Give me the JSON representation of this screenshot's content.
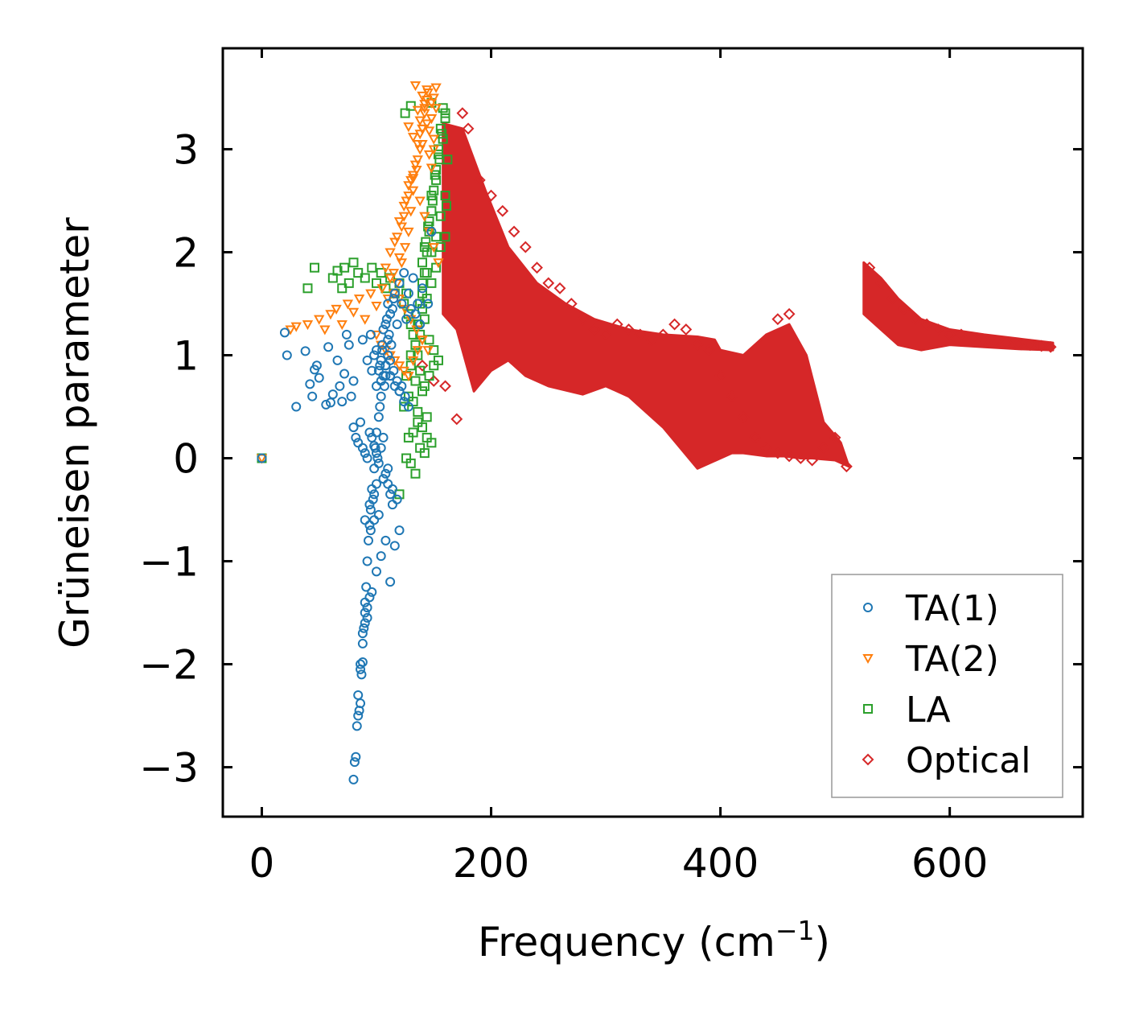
{
  "chart_data": {
    "type": "scatter",
    "title": "",
    "xlabel": "Frequency (cm",
    "xlabel_sup": "−1",
    "xlabel_suffix": ")",
    "ylabel": "Grüneisen parameter",
    "xlim": [
      -34,
      716
    ],
    "ylim": [
      -3.48,
      3.98
    ],
    "xticks": [
      0,
      200,
      400,
      600
    ],
    "xtick_labels": [
      "0",
      "200",
      "400",
      "600"
    ],
    "yticks": [
      -3,
      -2,
      -1,
      0,
      1,
      2,
      3
    ],
    "ytick_labels": [
      "−3",
      "−2",
      "−1",
      "0",
      "1",
      "2",
      "3"
    ],
    "legend_position": "lower-right",
    "series": [
      {
        "name": "TA(1)",
        "marker": "circle",
        "color": "#1f77b4",
        "x": [
          0,
          20,
          22,
          30,
          38,
          42,
          44,
          46,
          48,
          50,
          56,
          58,
          60,
          62,
          66,
          68,
          70,
          72,
          74,
          76,
          78,
          80,
          80,
          81,
          82,
          83,
          84,
          85,
          86,
          86,
          87,
          88,
          88,
          89,
          90,
          90,
          91,
          92,
          92,
          93,
          94,
          95,
          95,
          96,
          97,
          98,
          98,
          99,
          100,
          100,
          101,
          102,
          102,
          103,
          104,
          104,
          105,
          106,
          106,
          107,
          108,
          108,
          109,
          110,
          110,
          111,
          112,
          113,
          114,
          115,
          116,
          118,
          120,
          122,
          124,
          126,
          128,
          130,
          132,
          134,
          136,
          138,
          140,
          145,
          148,
          95,
          98,
          100,
          103,
          105,
          108,
          110,
          112,
          115,
          118,
          120,
          122,
          125,
          88,
          92,
          96,
          100,
          104,
          108,
          112,
          116,
          120,
          124,
          128,
          90,
          94,
          98,
          102,
          106,
          110,
          114,
          118,
          100,
          104,
          108,
          112,
          116,
          120,
          84,
          86,
          88,
          90,
          92,
          94,
          96,
          80,
          82,
          84,
          86,
          88,
          90,
          92,
          94,
          96,
          98,
          100,
          102,
          104,
          106,
          108,
          110,
          112,
          114
        ],
        "y": [
          0,
          1.22,
          1.0,
          0.5,
          1.04,
          0.72,
          0.6,
          0.86,
          0.9,
          0.78,
          0.52,
          1.08,
          0.54,
          0.62,
          0.95,
          0.7,
          0.55,
          0.82,
          1.2,
          1.1,
          0.6,
          0.75,
          -3.12,
          -2.95,
          -2.9,
          -2.6,
          -2.5,
          -2.45,
          -2.38,
          -2.05,
          -2.1,
          -1.7,
          -1.98,
          -1.65,
          -1.4,
          -1.5,
          -1.25,
          -1.0,
          -1.55,
          -0.8,
          -0.65,
          -0.5,
          -0.7,
          -0.3,
          -0.4,
          -0.1,
          -0.6,
          0.1,
          -0.25,
          0.25,
          0.0,
          0.4,
          0.85,
          0.5,
          0.6,
          0.95,
          1.1,
          0.8,
          1.25,
          0.7,
          1.3,
          0.9,
          1.35,
          1.0,
          1.5,
          1.2,
          1.4,
          1.1,
          1.45,
          1.55,
          1.6,
          1.3,
          1.7,
          1.5,
          1.8,
          1.35,
          1.6,
          1.45,
          1.75,
          1.4,
          1.5,
          1.3,
          1.65,
          1.5,
          2.2,
          1.2,
          1.0,
          0.7,
          0.9,
          1.05,
          0.8,
          1.15,
          0.95,
          0.85,
          0.75,
          0.65,
          0.7,
          0.6,
          1.15,
          0.95,
          0.85,
          1.05,
          0.75,
          0.9,
          0.8,
          0.7,
          0.65,
          0.55,
          0.5,
          -0.6,
          -0.45,
          -0.35,
          -0.55,
          -0.2,
          -0.1,
          -0.3,
          -0.4,
          -1.1,
          -0.95,
          -0.8,
          -1.2,
          -0.85,
          -0.7,
          -2.3,
          -2.0,
          -1.8,
          -1.6,
          -1.45,
          -1.35,
          -1.3,
          0.3,
          0.2,
          0.15,
          0.35,
          0.1,
          0.05,
          0.0,
          0.25,
          0.2,
          0.12,
          0.05,
          -0.05,
          0.1,
          0.2,
          -0.15,
          -0.25,
          -0.35,
          -0.45
        ]
      },
      {
        "name": "TA(2)",
        "marker": "triangle-down",
        "color": "#ff7f0e",
        "x": [
          0,
          25,
          30,
          40,
          50,
          55,
          60,
          65,
          70,
          75,
          80,
          85,
          90,
          95,
          100,
          105,
          110,
          112,
          115,
          118,
          120,
          122,
          125,
          128,
          130,
          132,
          135,
          138,
          140,
          142,
          145,
          148,
          150,
          108,
          112,
          116,
          120,
          124,
          128,
          132,
          136,
          140,
          144,
          148,
          152,
          118,
          122,
          126,
          130,
          134,
          138,
          142,
          146,
          150,
          124,
          128,
          132,
          136,
          140,
          144,
          148,
          128,
          132,
          136,
          140,
          144,
          148,
          152,
          134,
          138,
          142,
          146,
          150,
          138,
          142,
          146,
          150,
          154,
          100,
          104,
          108,
          112,
          116,
          120,
          124,
          128,
          132,
          136,
          140,
          115,
          120,
          125,
          130,
          135,
          140,
          145
        ],
        "y": [
          0,
          1.25,
          1.28,
          1.3,
          1.35,
          1.25,
          1.4,
          1.45,
          1.3,
          1.5,
          1.42,
          1.55,
          1.35,
          1.6,
          1.48,
          1.65,
          1.55,
          1.75,
          1.8,
          1.7,
          1.95,
          1.9,
          2.05,
          2.2,
          2.4,
          2.6,
          2.8,
          3.0,
          3.2,
          3.4,
          3.55,
          3.3,
          3.1,
          1.85,
          2.0,
          2.1,
          2.3,
          2.45,
          2.65,
          2.75,
          2.9,
          3.05,
          3.25,
          3.45,
          3.6,
          2.15,
          2.25,
          2.5,
          2.7,
          2.85,
          3.15,
          3.35,
          2.95,
          3.5,
          2.35,
          2.55,
          2.72,
          3.05,
          3.2,
          3.48,
          2.82,
          3.22,
          3.12,
          3.38,
          3.52,
          3.58,
          3.3,
          3.4,
          3.62,
          3.28,
          3.44,
          3.18,
          3.0,
          2.5,
          2.35,
          2.2,
          2.05,
          1.9,
          1.2,
          1.1,
          1.05,
          1.0,
          0.95,
          0.9,
          0.85,
          0.8,
          0.95,
          1.05,
          1.15,
          1.6,
          1.55,
          1.45,
          1.35,
          1.25,
          1.15,
          1.05
        ]
      },
      {
        "name": "LA",
        "marker": "square",
        "color": "#2ca02c",
        "x": [
          0,
          40,
          46,
          62,
          66,
          70,
          72,
          76,
          80,
          84,
          90,
          96,
          100,
          104,
          108,
          112,
          116,
          120,
          124,
          126,
          128,
          130,
          132,
          134,
          136,
          138,
          140,
          142,
          144,
          146,
          148,
          150,
          152,
          154,
          156,
          158,
          160,
          140,
          143,
          146,
          149,
          152,
          155,
          158,
          161,
          142,
          145,
          148,
          151,
          154,
          157,
          160,
          140,
          144,
          148,
          152,
          156,
          160,
          162,
          136,
          140,
          144,
          148,
          152,
          156,
          160,
          130,
          134,
          138,
          142,
          146,
          150,
          154,
          126,
          130,
          134,
          138,
          142,
          146,
          150,
          124,
          128,
          132,
          136,
          140,
          144,
          128,
          132,
          136,
          140,
          144,
          148,
          120,
          126,
          130,
          134,
          138,
          142,
          130,
          125,
          148
        ],
        "y": [
          0,
          1.65,
          1.85,
          1.75,
          1.82,
          1.65,
          1.85,
          1.7,
          1.9,
          1.8,
          1.75,
          1.85,
          1.7,
          1.8,
          1.65,
          1.75,
          1.6,
          1.7,
          1.5,
          1.6,
          1.4,
          1.3,
          1.2,
          1.1,
          1.0,
          1.5,
          1.7,
          1.8,
          2.0,
          2.2,
          2.4,
          2.6,
          2.8,
          3.0,
          3.2,
          3.4,
          3.3,
          1.9,
          2.1,
          2.3,
          2.5,
          2.7,
          2.9,
          3.1,
          2.45,
          2.05,
          2.25,
          2.55,
          2.75,
          2.95,
          3.15,
          3.35,
          1.6,
          1.8,
          2.0,
          2.15,
          2.35,
          2.55,
          2.9,
          1.3,
          1.45,
          1.55,
          1.7,
          1.85,
          2.05,
          2.15,
          1.0,
          1.1,
          1.2,
          1.35,
          1.15,
          1.05,
          0.95,
          0.8,
          0.9,
          0.75,
          0.85,
          0.7,
          0.8,
          0.9,
          0.5,
          0.6,
          0.55,
          0.45,
          0.65,
          0.4,
          0.2,
          0.25,
          0.35,
          0.3,
          0.2,
          0.15,
          -0.35,
          0.0,
          -0.05,
          -0.15,
          0.1,
          0.05,
          3.42,
          3.35,
          3.45
        ]
      },
      {
        "name": "Optical",
        "marker": "diamond",
        "color": "#d62728",
        "x": [
          140,
          150,
          160,
          170,
          175,
          180,
          190,
          200,
          210,
          220,
          230,
          240,
          250,
          260,
          270,
          280,
          290,
          300,
          310,
          320,
          330,
          340,
          350,
          360,
          370,
          380,
          390,
          400,
          410,
          420,
          430,
          440,
          450,
          460,
          470,
          480,
          490,
          500,
          510,
          450,
          460,
          530,
          540,
          550,
          560,
          570,
          580,
          590,
          600,
          610,
          620,
          630,
          640,
          650,
          660,
          670,
          680,
          688
        ],
        "y": [
          0.9,
          0.75,
          0.7,
          0.38,
          3.35,
          3.2,
          2.7,
          2.55,
          2.4,
          2.2,
          2.05,
          1.85,
          1.7,
          1.65,
          1.5,
          1.35,
          1.25,
          1.2,
          1.3,
          1.25,
          1.2,
          1.15,
          1.2,
          1.3,
          1.25,
          1.1,
          1.05,
          0.8,
          0.6,
          0.4,
          0.2,
          0.1,
          0.05,
          0.02,
          0.0,
          -0.02,
          0.1,
          0.2,
          -0.08,
          1.35,
          1.4,
          1.85,
          1.7,
          1.55,
          1.45,
          1.35,
          1.3,
          1.25,
          1.2,
          1.2,
          1.17,
          1.15,
          1.13,
          1.12,
          1.11,
          1.1,
          1.09,
          1.08
        ],
        "bands": [
          {
            "x": [
              158,
              175,
              195,
              215,
              240,
              265,
              290,
              320,
              350,
              380,
              395,
              400,
              420,
              440,
              460,
              475,
              490,
              500,
              505,
              512,
              500,
              480,
              470,
              455,
              440,
              420,
              410,
              400,
              380,
              350,
              320,
              300,
              280,
              250,
              230,
              215,
              200,
              185,
              170,
              158
            ],
            "y": [
              3.25,
              3.2,
              2.6,
              2.05,
              1.7,
              1.5,
              1.35,
              1.25,
              1.2,
              1.18,
              1.15,
              1.05,
              1.0,
              1.2,
              1.3,
              1.0,
              0.35,
              0.22,
              0.15,
              -0.08,
              -0.02,
              0.0,
              0.0,
              0.02,
              0.02,
              0.05,
              0.05,
              0.0,
              -0.1,
              0.3,
              0.6,
              0.7,
              0.62,
              0.7,
              0.8,
              0.95,
              0.85,
              0.65,
              1.25,
              1.4
            ]
          },
          {
            "x": [
              525,
              540,
              555,
              575,
              600,
              630,
              660,
              690,
              690,
              660,
              630,
              600,
              575,
              555,
              540,
              525
            ],
            "y": [
              1.9,
              1.75,
              1.55,
              1.35,
              1.25,
              1.2,
              1.16,
              1.12,
              1.05,
              1.06,
              1.08,
              1.1,
              1.05,
              1.1,
              1.25,
              1.4
            ]
          }
        ]
      }
    ]
  }
}
